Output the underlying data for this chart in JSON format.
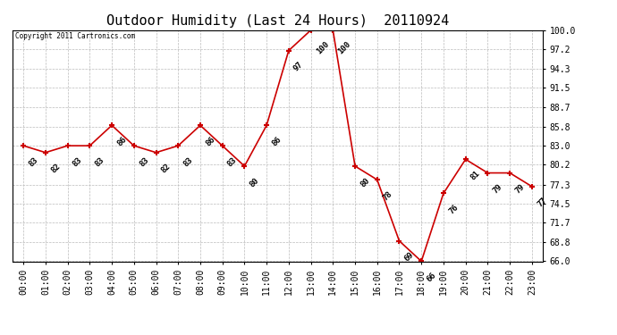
{
  "title": "Outdoor Humidity (Last 24 Hours)  20110924",
  "copyright": "Copyright 2011 Cartronics.com",
  "x_labels": [
    "00:00",
    "01:00",
    "02:00",
    "03:00",
    "04:00",
    "05:00",
    "06:00",
    "07:00",
    "08:00",
    "09:00",
    "10:00",
    "11:00",
    "12:00",
    "13:00",
    "14:00",
    "15:00",
    "16:00",
    "17:00",
    "18:00",
    "19:00",
    "20:00",
    "21:00",
    "22:00",
    "23:00"
  ],
  "y_values": [
    83,
    82,
    83,
    83,
    86,
    83,
    82,
    83,
    86,
    83,
    80,
    86,
    97,
    100,
    100,
    80,
    78,
    69,
    66,
    76,
    81,
    79,
    79,
    77
  ],
  "line_color": "#cc0000",
  "marker_color": "#cc0000",
  "bg_color": "#ffffff",
  "grid_color": "#bbbbbb",
  "ylim_min": 66.0,
  "ylim_max": 100.0,
  "yticks": [
    100.0,
    97.2,
    94.3,
    91.5,
    88.7,
    85.8,
    83.0,
    80.2,
    77.3,
    74.5,
    71.7,
    68.8,
    66.0
  ],
  "title_fontsize": 11,
  "label_fontsize": 7,
  "annotation_fontsize": 6.5
}
